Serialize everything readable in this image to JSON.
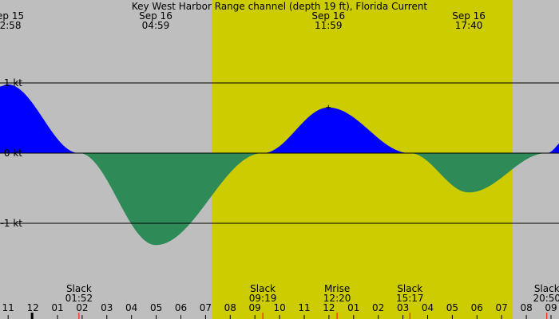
{
  "chart_data": {
    "type": "area",
    "title": "Key West Harbor Range channel (depth 19 ft), Florida Current",
    "xlabel": "",
    "ylabel": "",
    "units": "kt",
    "x_range_hours": [
      22.67,
      33.95
    ],
    "ylim": [
      -2.1,
      1.2
    ],
    "y_ticks": [
      {
        "value": 1,
        "label": "1 kt"
      },
      {
        "value": 0,
        "label": "0 kt"
      },
      {
        "value": -1,
        "label": "-1 kt"
      }
    ],
    "x_ticks": [
      {
        "hour": 23,
        "label": "11"
      },
      {
        "hour": 24,
        "label": "12"
      },
      {
        "hour": 25,
        "label": "01"
      },
      {
        "hour": 26,
        "label": "02"
      },
      {
        "hour": 27,
        "label": "03"
      },
      {
        "hour": 28,
        "label": "04"
      },
      {
        "hour": 29,
        "label": "05"
      },
      {
        "hour": 30,
        "label": "06"
      },
      {
        "hour": 31,
        "label": "07"
      },
      {
        "hour": 32,
        "label": "08"
      },
      {
        "hour": 33,
        "label": "09"
      },
      {
        "hour": 34,
        "label": "10"
      },
      {
        "hour": 35,
        "label": "11"
      },
      {
        "hour": 36,
        "label": "12"
      },
      {
        "hour": 37,
        "label": "01"
      },
      {
        "hour": 38,
        "label": "02"
      },
      {
        "hour": 39,
        "label": "03"
      },
      {
        "hour": 40,
        "label": "04"
      },
      {
        "hour": 41,
        "label": "05"
      },
      {
        "hour": 42,
        "label": "06"
      },
      {
        "hour": 43,
        "label": "07"
      },
      {
        "hour": 44,
        "label": "08"
      },
      {
        "hour": 45,
        "label": "09"
      }
    ],
    "daylight": {
      "start_hour": 31.25,
      "end_hour": 43.45
    },
    "colors": {
      "background": "#bebebe",
      "daylight": "#cccc00",
      "flood": "#0000ff",
      "ebb": "#2e8b57",
      "grid": "#000000",
      "marker": "#ff0000"
    },
    "points": [
      {
        "hour": 22.67,
        "value": 0.95
      },
      {
        "hour": 22.97,
        "value": 0.98
      },
      {
        "hour": 25.87,
        "value": 0.0
      },
      {
        "hour": 28.98,
        "value": -1.31
      },
      {
        "hour": 33.32,
        "value": 0.0
      },
      {
        "hour": 35.98,
        "value": 0.65
      },
      {
        "hour": 39.28,
        "value": 0.0
      },
      {
        "hour": 41.67,
        "value": -0.56
      },
      {
        "hour": 44.83,
        "value": 0.0
      },
      {
        "hour": 45.67,
        "value": 0.22
      }
    ],
    "top_events": [
      {
        "date": "Sep 15",
        "time": "22:58",
        "hour": 22.97
      },
      {
        "date": "Sep 16",
        "time": "04:59",
        "hour": 28.98
      },
      {
        "date": "Sep 16",
        "time": "11:59",
        "hour": 35.98
      },
      {
        "date": "Sep 16",
        "time": "17:40",
        "hour": 41.67
      }
    ],
    "bottom_events": [
      {
        "label": "Slack",
        "time": "01:52",
        "hour": 25.87
      },
      {
        "label": "Slack",
        "time": "09:19",
        "hour": 33.32
      },
      {
        "label": "Mrise",
        "time": "12:20",
        "hour": 36.33
      },
      {
        "label": "Slack",
        "time": "15:17",
        "hour": 39.28
      },
      {
        "label": "Slack",
        "time": "20:50",
        "hour": 44.83
      }
    ],
    "current_time_marker": {
      "hour": 23.97
    },
    "max_marker": {
      "hour": 35.98,
      "value": 0.65
    }
  }
}
